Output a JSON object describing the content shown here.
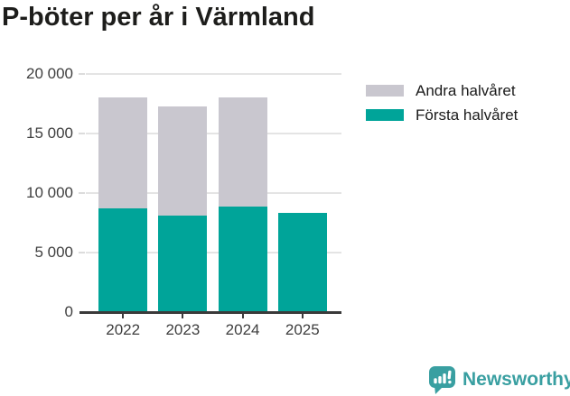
{
  "title": "P-böter per år i Värmland",
  "legend": {
    "items": [
      {
        "label": "Andra halvåret",
        "color": "#c9c7cf"
      },
      {
        "label": "Första halvåret",
        "color": "#00a499"
      }
    ]
  },
  "footer": {
    "brand": "Newsworthy"
  },
  "colors": {
    "first_half": "#00a499",
    "second_half": "#c9c7cf",
    "axis_text": "#3f3f3f",
    "gridline": "#e4e4e4",
    "axis_line": "#3a3a3a",
    "title_text": "#1d1d1b",
    "brand": "#399fa1"
  },
  "chart_data": {
    "type": "bar",
    "stacked": true,
    "title": "P-böter per år i Värmland",
    "categories": [
      "2022",
      "2023",
      "2024",
      "2025"
    ],
    "series": [
      {
        "name": "Första halvåret",
        "key": "forsta-halvaret",
        "color": "#00a499",
        "values": [
          8700,
          8100,
          8900,
          8300
        ]
      },
      {
        "name": "Andra halvåret",
        "key": "andra-halvaret",
        "color": "#c9c7cf",
        "values": [
          9300,
          9200,
          9100,
          0
        ]
      }
    ],
    "totals": [
      18000,
      17300,
      18000,
      8300
    ],
    "ylim": [
      0,
      20000
    ],
    "yticks": [
      {
        "value": 0,
        "label": "0"
      },
      {
        "value": 5000,
        "label": "5 000"
      },
      {
        "value": 10000,
        "label": "10 000"
      },
      {
        "value": 15000,
        "label": "15 000"
      },
      {
        "value": 20000,
        "label": "20 000"
      }
    ],
    "grid": true,
    "legend_position": "right"
  }
}
